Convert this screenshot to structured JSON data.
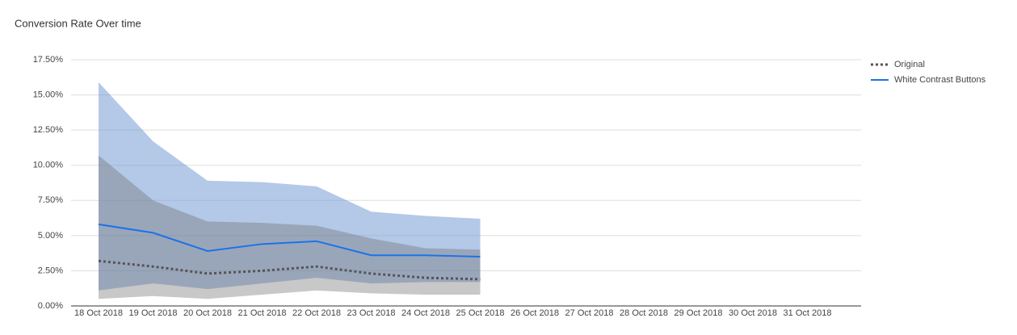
{
  "chart_data": {
    "type": "line",
    "title": "Conversion Rate Over time",
    "categories": [
      "18 Oct 2018",
      "19 Oct 2018",
      "20 Oct 2018",
      "21 Oct 2018",
      "22 Oct 2018",
      "23 Oct 2018",
      "24 Oct 2018",
      "25 Oct 2018",
      "26 Oct 2018",
      "27 Oct 2018",
      "28 Oct 2018",
      "29 Oct 2018",
      "30 Oct 2018",
      "31 Oct 2018"
    ],
    "series": [
      {
        "name": "Original",
        "color": "#555555",
        "dashed": true,
        "values": [
          3.2,
          2.8,
          2.3,
          2.5,
          2.8,
          2.3,
          2.0,
          1.9,
          null,
          null,
          null,
          null,
          null,
          null
        ],
        "lower": [
          0.5,
          0.7,
          0.5,
          0.8,
          1.1,
          0.9,
          0.8,
          0.8,
          null,
          null,
          null,
          null,
          null,
          null
        ],
        "upper": [
          10.7,
          7.5,
          6.0,
          5.9,
          5.7,
          4.8,
          4.1,
          4.0,
          null,
          null,
          null,
          null,
          null,
          null
        ]
      },
      {
        "name": "White Contrast Buttons",
        "color": "#1a73e8",
        "dashed": false,
        "values": [
          5.8,
          5.2,
          3.9,
          4.4,
          4.6,
          3.6,
          3.6,
          3.5,
          null,
          null,
          null,
          null,
          null,
          null
        ],
        "lower": [
          1.1,
          1.6,
          1.2,
          1.6,
          2.0,
          1.6,
          1.7,
          1.7,
          null,
          null,
          null,
          null,
          null,
          null
        ],
        "upper": [
          15.9,
          11.7,
          8.9,
          8.8,
          8.5,
          6.7,
          6.4,
          6.2,
          null,
          null,
          null,
          null,
          null,
          null
        ]
      }
    ],
    "ylim": [
      0,
      17.5
    ],
    "yticks": [
      {
        "value": 0,
        "label": "0.00%"
      },
      {
        "value": 2.5,
        "label": "2.50%"
      },
      {
        "value": 5,
        "label": "5.00%"
      },
      {
        "value": 7.5,
        "label": "7.50%"
      },
      {
        "value": 10,
        "label": "10.00%"
      },
      {
        "value": 12.5,
        "label": "12.50%"
      },
      {
        "value": 15,
        "label": "15.00%"
      },
      {
        "value": 17.5,
        "label": "17.50%"
      }
    ],
    "grid": true,
    "legend": "right"
  }
}
